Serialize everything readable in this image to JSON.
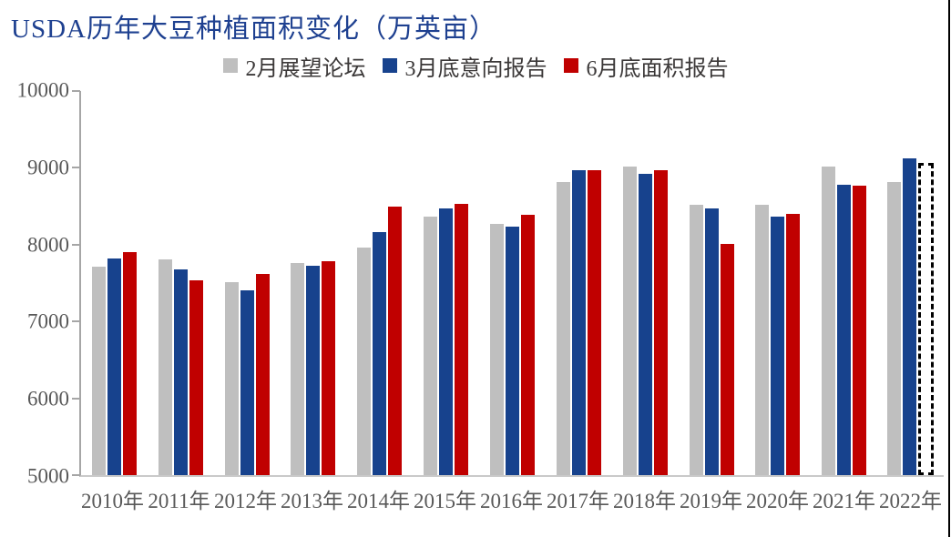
{
  "title": "USDA历年大豆种植面积变化（万英亩）",
  "title_color": "#1e4090",
  "axis_text_color": "#595959",
  "legend": {
    "items": [
      {
        "label": "2月展望论坛",
        "color": "#bfbfbf"
      },
      {
        "label": "3月底意向报告",
        "color": "#17428d"
      },
      {
        "label": "6月底面积报告",
        "color": "#c00000"
      }
    ]
  },
  "chart_data": {
    "type": "bar",
    "title": "USDA历年大豆种植面积变化（万英亩）",
    "categories": [
      "2010年",
      "2011年",
      "2012年",
      "2013年",
      "2014年",
      "2015年",
      "2016年",
      "2017年",
      "2018年",
      "2019年",
      "2020年",
      "2021年",
      "2022年"
    ],
    "series": [
      {
        "name": "2月展望论坛",
        "color": "#bfbfbf",
        "values": [
          7700,
          7800,
          7500,
          7750,
          7950,
          8350,
          8250,
          8800,
          9000,
          8500,
          8500,
          9000,
          8800
        ]
      },
      {
        "name": "3月底意向报告",
        "color": "#17428d",
        "values": [
          7810,
          7660,
          7390,
          7710,
          8150,
          8460,
          8220,
          8950,
          8900,
          8460,
          8350,
          8760,
          9100
        ]
      },
      {
        "name": "6月底面积报告",
        "color": "#c00000",
        "values": [
          7890,
          7520,
          7610,
          7770,
          8480,
          8520,
          8370,
          8950,
          8950,
          8000,
          8380,
          8750,
          null
        ]
      }
    ],
    "placeholder": {
      "category": "2022年",
      "series": "6月底面积报告",
      "style": "dashed-outline-box",
      "approx_value": 9050
    },
    "xlabel": "",
    "ylabel": "",
    "ylim": [
      5000,
      10000
    ],
    "yticks": [
      10000,
      9000,
      8000,
      7000,
      6000,
      5000
    ],
    "grid": "off",
    "legend_position": "top-center"
  }
}
